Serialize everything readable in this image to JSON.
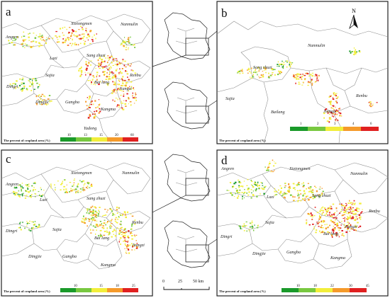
{
  "panels": [
    {
      "id": "a",
      "letter": "a",
      "places": [
        "Angren",
        "Xietongmen",
        "Nanmulin",
        "Lazi",
        "Sang zhuzi",
        "Sajia",
        "Renbu",
        "Dingri",
        "Bai lang",
        "Jiangzi",
        "Dingjie",
        "Gangba",
        "Kangma",
        "Yadong"
      ],
      "legend": {
        "title": "The percent of cropland area (%)",
        "ticks": [
          "10",
          "13",
          "15",
          "20",
          "60"
        ],
        "colors": [
          "#1a9a2a",
          "#78c840",
          "#f2ee3a",
          "#f59a2a",
          "#e02020"
        ]
      }
    },
    {
      "id": "b",
      "letter": "b",
      "places": [
        "Nanmulin",
        "Sang zhuzi",
        "Sajia",
        "Bailang",
        "Renbu",
        "Jiangzi"
      ],
      "north_label": "N",
      "legend": {
        "title": "The percent of cropland area (%)",
        "ticks": [
          "1",
          "2",
          "3",
          "4",
          "6"
        ],
        "colors": [
          "#1a9a2a",
          "#78c840",
          "#f2ee3a",
          "#f59a2a",
          "#e02020"
        ]
      }
    },
    {
      "id": "c",
      "letter": "c",
      "places": [
        "Angren",
        "Xietongmen",
        "Nanmulin",
        "Lazi",
        "Sang zhuzi",
        "Sajia",
        "Renbu",
        "Dingri",
        "Bai lang",
        "Jiangzi",
        "Dingjie",
        "Gangba",
        "Kangma"
      ],
      "legend": {
        "title": "The percent of cropland area (%)",
        "ticks": [
          "10",
          "15",
          "18",
          "25"
        ],
        "colors": [
          "#1a9a2a",
          "#78c840",
          "#f2ee3a",
          "#f59a2a",
          "#e02020"
        ]
      }
    },
    {
      "id": "d",
      "letter": "d",
      "places": [
        "Angren",
        "Xietongmen",
        "Nanmulin",
        "Lazi",
        "Sang zhuzi",
        "Sajia",
        "Renbu",
        "Dingri",
        "Bai lang",
        "Jiangzi",
        "Dingjie",
        "Gangba",
        "Kangma"
      ],
      "legend": {
        "title": "The percent of cropland area (%)",
        "ticks": [
          "10",
          "18",
          "22",
          "30",
          "45"
        ],
        "colors": [
          "#1a9a2a",
          "#78c840",
          "#f2ee3a",
          "#f59a2a",
          "#e02020"
        ]
      }
    }
  ],
  "scale_bar": {
    "labels": [
      "0",
      "25",
      "50 km"
    ]
  }
}
